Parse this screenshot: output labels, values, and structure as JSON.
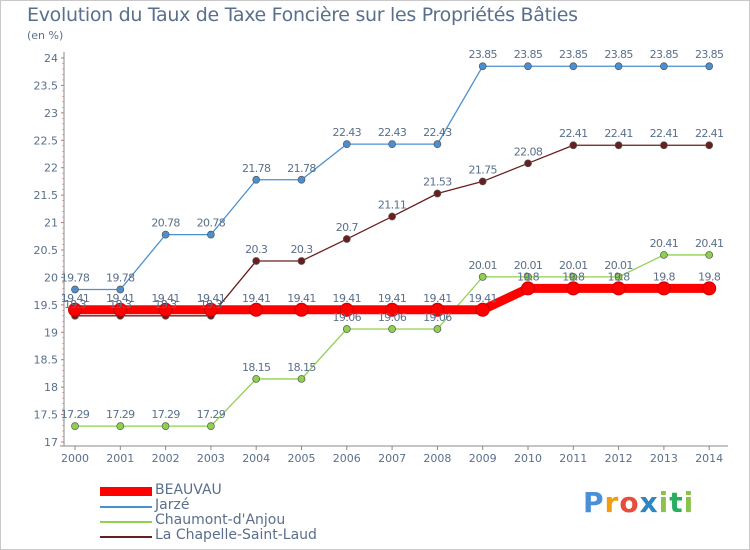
{
  "title": "Evolution du Taux de Taxe Foncière sur les Propriétés Bâties",
  "unit_label": "(en %)",
  "logo": {
    "letters": [
      {
        "ch": "P",
        "color": "#4a90d9"
      },
      {
        "ch": "r",
        "color": "#f39c12"
      },
      {
        "ch": "o",
        "color": "#e74c3c"
      },
      {
        "ch": "x",
        "color": "#2e86c1"
      },
      {
        "ch": "i",
        "color": "#8bc34a"
      },
      {
        "ch": "t",
        "color": "#27ae60"
      },
      {
        "ch": "i",
        "color": "#8bc34a"
      }
    ]
  },
  "chart_data": {
    "type": "line",
    "title": "Evolution du Taux de Taxe Foncière sur les Propriétés Bâties",
    "ylabel": "(en %)",
    "xlabel": "",
    "x": [
      2000,
      2001,
      2002,
      2003,
      2004,
      2005,
      2006,
      2007,
      2008,
      2009,
      2010,
      2011,
      2012,
      2013,
      2014
    ],
    "ylim": [
      17,
      24
    ],
    "yticks": [
      "17",
      "17.5",
      "18",
      "18.5",
      "19",
      "19.5",
      "20",
      "20.5",
      "21",
      "21.5",
      "22",
      "22.5",
      "23",
      "23.5",
      "24"
    ],
    "grid": "none",
    "legend_position": "bottom-left",
    "series": [
      {
        "name": "BEAUVAU",
        "color": "#ff0000",
        "values": [
          19.41,
          19.41,
          19.41,
          19.41,
          19.41,
          19.41,
          19.41,
          19.41,
          19.41,
          19.41,
          19.8,
          19.8,
          19.8,
          19.8,
          19.8
        ],
        "labels": [
          "19.41",
          "19.41",
          "19.41",
          "19.41",
          "19.41",
          "19.41",
          "19.41",
          "19.41",
          "19.41",
          "19.41",
          "19.8",
          "19.8",
          "19.8",
          "19.8",
          "19.8"
        ]
      },
      {
        "name": "Jarzé",
        "color": "#4a90d0",
        "values": [
          19.78,
          19.78,
          20.78,
          20.78,
          21.78,
          21.78,
          22.43,
          22.43,
          22.43,
          23.85,
          23.85,
          23.85,
          23.85,
          23.85,
          23.85
        ],
        "labels": [
          "19.78",
          "19.78",
          "20.78",
          "20.78",
          "21.78",
          "21.78",
          "22.43",
          "22.43",
          "22.43",
          "23.85",
          "23.85",
          "23.85",
          "23.85",
          "23.85",
          "23.85"
        ]
      },
      {
        "name": "Chaumont-d'Anjou",
        "color": "#8fd14f",
        "values": [
          17.29,
          17.29,
          17.29,
          17.29,
          18.15,
          18.15,
          19.06,
          19.06,
          19.06,
          20.01,
          20.01,
          20.01,
          20.01,
          20.41,
          20.41
        ],
        "labels": [
          "17.29",
          "17.29",
          "17.29",
          "17.29",
          "18.15",
          "18.15",
          "19.06",
          "19.06",
          "19.06",
          "20.01",
          "20.01",
          "20.01",
          "20.01",
          "20.41",
          "20.41"
        ]
      },
      {
        "name": "La Chapelle-Saint-Laud",
        "color": "#6b1e1e",
        "values": [
          19.3,
          19.3,
          19.3,
          19.3,
          20.3,
          20.3,
          20.7,
          21.11,
          21.53,
          21.75,
          22.08,
          22.41,
          22.41,
          22.41,
          22.41
        ],
        "labels": [
          "19.3",
          "19.3",
          "19.3",
          "19.3",
          "20.3",
          "20.3",
          "20.7",
          "21.11",
          "21.53",
          "21.75",
          "22.08",
          "22.41",
          "22.41",
          "22.41",
          "22.41"
        ]
      }
    ]
  }
}
